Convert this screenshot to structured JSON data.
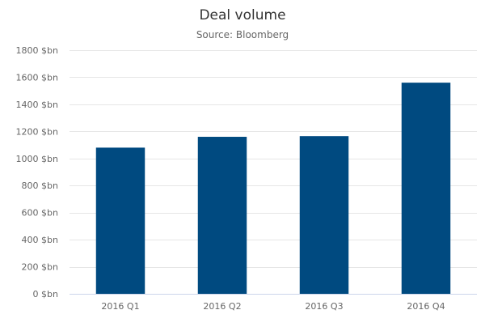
{
  "chart_data": {
    "type": "bar",
    "title": "Deal volume",
    "subtitle": "Source: Bloomberg",
    "xlabel": "",
    "ylabel": "",
    "categories": [
      "2016 Q1",
      "2016 Q2",
      "2016 Q3",
      "2016 Q4"
    ],
    "values": [
      1080,
      1160,
      1165,
      1560
    ],
    "ylim": [
      0,
      1800
    ],
    "yticks": [
      0,
      200,
      400,
      600,
      800,
      1000,
      1200,
      1400,
      1600,
      1800
    ],
    "ytick_labels": [
      "0 $bn",
      "200 $bn",
      "400 $bn",
      "600 $bn",
      "800 $bn",
      "1000 $bn",
      "1200 $bn",
      "1400 $bn",
      "1600 $bn",
      "1800 $bn"
    ],
    "grid": true,
    "legend": "none"
  },
  "colors": {
    "bar": "#004a80",
    "grid": "#e6e6e6",
    "axis": "#ccd6eb",
    "title": "#333333",
    "subtitle": "#666666",
    "tick_label": "#666666"
  }
}
